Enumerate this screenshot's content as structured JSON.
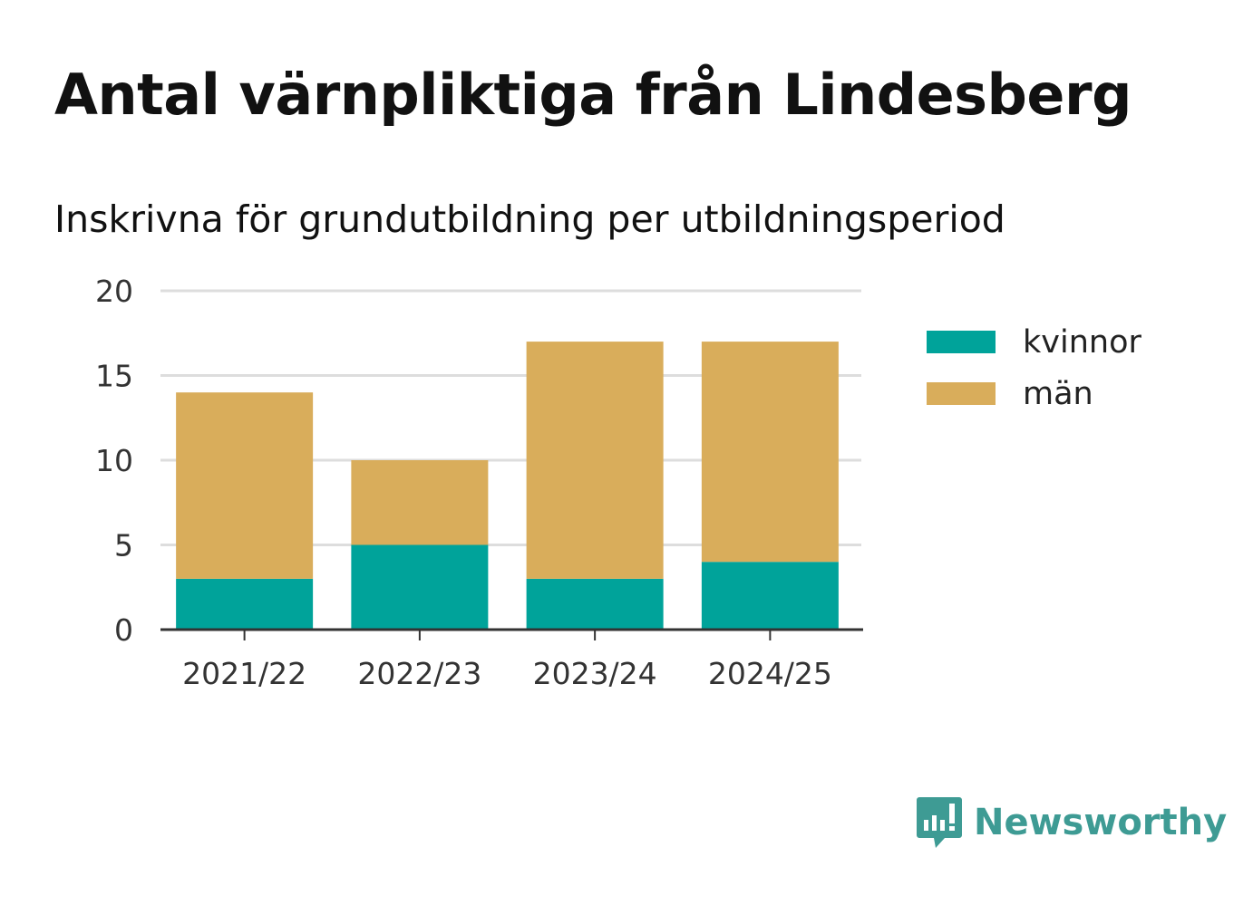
{
  "chart_data": {
    "type": "bar",
    "stacked": true,
    "title": "Antal värnpliktiga från Lindesberg",
    "subtitle": "Inskrivna för grundutbildning per utbildningsperiod",
    "categories": [
      "2021/22",
      "2022/23",
      "2023/24",
      "2024/25"
    ],
    "series": [
      {
        "name": "kvinnor",
        "color": "#00a39a",
        "values": [
          3,
          5,
          3,
          4
        ]
      },
      {
        "name": "män",
        "color": "#d9ad5b",
        "values": [
          11,
          5,
          14,
          13
        ]
      }
    ],
    "yticks": [
      0,
      5,
      10,
      15,
      20
    ],
    "ylim": [
      0,
      20
    ],
    "xlabel": "",
    "ylabel": "",
    "grid": true,
    "legend": "right"
  },
  "brand": {
    "name": "Newsworthy",
    "color": "#3e9b94"
  }
}
